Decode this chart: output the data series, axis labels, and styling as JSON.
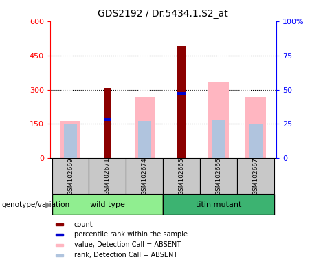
{
  "title": "GDS2192 / Dr.5434.1.S2_at",
  "samples": [
    "GSM102669",
    "GSM102671",
    "GSM102674",
    "GSM102665",
    "GSM102666",
    "GSM102667"
  ],
  "count": [
    0,
    308,
    0,
    490,
    0,
    0
  ],
  "percentile_rank_pct": [
    0,
    28,
    0,
    47.5,
    0,
    0
  ],
  "value_absent": [
    163,
    0,
    270,
    0,
    335,
    270
  ],
  "rank_absent_pct": [
    25,
    0,
    27,
    0,
    28,
    25
  ],
  "ylim_left": [
    0,
    600
  ],
  "ylim_right": [
    0,
    100
  ],
  "yticks_left": [
    0,
    150,
    300,
    450,
    600
  ],
  "ytick_labels_left": [
    "0",
    "150",
    "300",
    "450",
    "600"
  ],
  "yticks_right": [
    0,
    25,
    50,
    75,
    100
  ],
  "ytick_labels_right": [
    "0",
    "25",
    "50",
    "75",
    "100%"
  ],
  "color_count": "#8B0000",
  "color_rank": "#0000CD",
  "color_value_absent": "#FFB6C1",
  "color_rank_absent": "#B0C4DE",
  "group_color_wt": "#90EE90",
  "group_color_tm": "#3CB371",
  "xlabel_group": "genotype/variation",
  "legend_labels": [
    "count",
    "percentile rank within the sample",
    "value, Detection Call = ABSENT",
    "rank, Detection Call = ABSENT"
  ],
  "legend_colors": [
    "#8B0000",
    "#0000CD",
    "#FFB6C1",
    "#B0C4DE"
  ]
}
